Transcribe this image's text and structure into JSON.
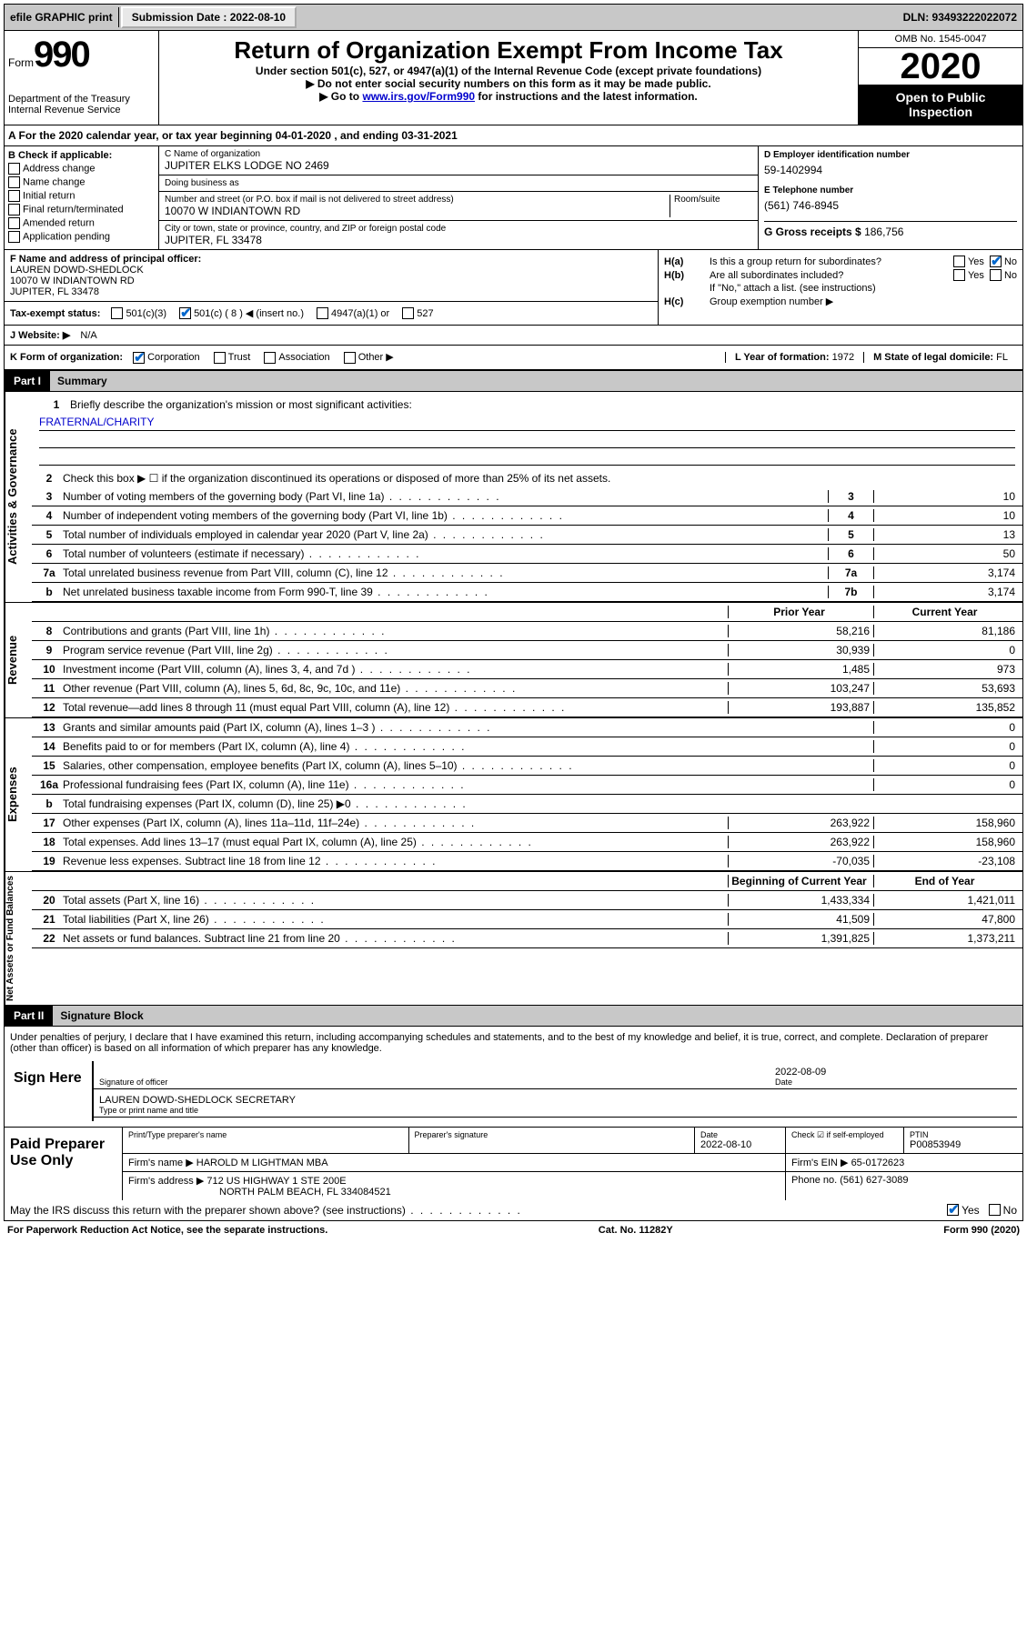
{
  "top_bar": {
    "efile": "efile GRAPHIC print",
    "sub_date_label": "Submission Date : 2022-08-10",
    "dln": "DLN: 93493222022072"
  },
  "header": {
    "form_word": "Form",
    "form_num": "990",
    "dept": "Department of the Treasury",
    "irs": "Internal Revenue Service",
    "title": "Return of Organization Exempt From Income Tax",
    "subtitle": "Under section 501(c), 527, or 4947(a)(1) of the Internal Revenue Code (except private foundations)",
    "note1": "▶ Do not enter social security numbers on this form as it may be made public.",
    "note2_pre": "▶ Go to ",
    "note2_link": "www.irs.gov/Form990",
    "note2_post": " for instructions and the latest information.",
    "omb": "OMB No. 1545-0047",
    "tax_year": "2020",
    "inspection": "Open to Public Inspection"
  },
  "line_a": "A For the 2020 calendar year, or tax year beginning 04-01-2020    , and ending 03-31-2021",
  "section_b": {
    "hdr": "B Check if applicable:",
    "opts": [
      "Address change",
      "Name change",
      "Initial return",
      "Final return/terminated",
      "Amended return",
      "Application pending"
    ]
  },
  "section_c": {
    "name_lbl": "C Name of organization",
    "name": "JUPITER ELKS LODGE NO 2469",
    "dba_lbl": "Doing business as",
    "dba": "",
    "addr_lbl": "Number and street (or P.O. box if mail is not delivered to street address)",
    "room_lbl": "Room/suite",
    "addr": "10070 W INDIANTOWN RD",
    "city_lbl": "City or town, state or province, country, and ZIP or foreign postal code",
    "city": "JUPITER, FL  33478"
  },
  "section_d": {
    "lbl": "D Employer identification number",
    "val": "59-1402994"
  },
  "section_e": {
    "lbl": "E Telephone number",
    "val": "(561) 746-8945"
  },
  "section_g": {
    "lbl": "G Gross receipts $ ",
    "val": "186,756"
  },
  "section_f": {
    "lbl": "F Name and address of principal officer:",
    "name": "LAUREN DOWD-SHEDLOCK",
    "addr": "10070 W INDIANTOWN RD",
    "city": "JUPITER, FL  33478"
  },
  "section_h": {
    "ha": "Is this a group return for subordinates?",
    "hb": "Are all subordinates included?",
    "hb_note": "If \"No,\" attach a list. (see instructions)",
    "hc": "Group exemption number ▶",
    "yes": "Yes",
    "no": "No"
  },
  "section_i": {
    "lbl": "Tax-exempt status:",
    "o1": "501(c)(3)",
    "o2": "501(c) ( 8 ) ◀ (insert no.)",
    "o3": "4947(a)(1) or",
    "o4": "527"
  },
  "section_j": {
    "lbl": "J   Website: ▶",
    "val": "N/A"
  },
  "section_k": {
    "lbl": "K Form of organization:",
    "o1": "Corporation",
    "o2": "Trust",
    "o3": "Association",
    "o4": "Other ▶",
    "l_lbl": "L Year of formation: ",
    "l_val": "1972",
    "m_lbl": "M State of legal domicile: ",
    "m_val": "FL"
  },
  "part1": {
    "label": "Part I",
    "title": "Summary"
  },
  "summary": {
    "q1": "Briefly describe the organization's mission or most significant activities:",
    "mission": "FRATERNAL/CHARITY",
    "q2": "Check this box ▶ ☐  if the organization discontinued its operations or disposed of more than 25% of its net assets.",
    "rows_governance": [
      {
        "n": "3",
        "t": "Number of voting members of the governing body (Part VI, line 1a)",
        "rn": "3",
        "v": "10"
      },
      {
        "n": "4",
        "t": "Number of independent voting members of the governing body (Part VI, line 1b)",
        "rn": "4",
        "v": "10"
      },
      {
        "n": "5",
        "t": "Total number of individuals employed in calendar year 2020 (Part V, line 2a)",
        "rn": "5",
        "v": "13"
      },
      {
        "n": "6",
        "t": "Total number of volunteers (estimate if necessary)",
        "rn": "6",
        "v": "50"
      },
      {
        "n": "7a",
        "t": "Total unrelated business revenue from Part VIII, column (C), line 12",
        "rn": "7a",
        "v": "3,174"
      },
      {
        "n": "b",
        "t": "Net unrelated business taxable income from Form 990-T, line 39",
        "rn": "7b",
        "v": "3,174"
      }
    ],
    "hdr_prior": "Prior Year",
    "hdr_curr": "Current Year",
    "rows_revenue": [
      {
        "n": "8",
        "t": "Contributions and grants (Part VIII, line 1h)",
        "p": "58,216",
        "c": "81,186"
      },
      {
        "n": "9",
        "t": "Program service revenue (Part VIII, line 2g)",
        "p": "30,939",
        "c": "0"
      },
      {
        "n": "10",
        "t": "Investment income (Part VIII, column (A), lines 3, 4, and 7d )",
        "p": "1,485",
        "c": "973"
      },
      {
        "n": "11",
        "t": "Other revenue (Part VIII, column (A), lines 5, 6d, 8c, 9c, 10c, and 11e)",
        "p": "103,247",
        "c": "53,693"
      },
      {
        "n": "12",
        "t": "Total revenue—add lines 8 through 11 (must equal Part VIII, column (A), line 12)",
        "p": "193,887",
        "c": "135,852"
      }
    ],
    "rows_expenses": [
      {
        "n": "13",
        "t": "Grants and similar amounts paid (Part IX, column (A), lines 1–3 )",
        "p": "",
        "c": "0"
      },
      {
        "n": "14",
        "t": "Benefits paid to or for members (Part IX, column (A), line 4)",
        "p": "",
        "c": "0"
      },
      {
        "n": "15",
        "t": "Salaries, other compensation, employee benefits (Part IX, column (A), lines 5–10)",
        "p": "",
        "c": "0"
      },
      {
        "n": "16a",
        "t": "Professional fundraising fees (Part IX, column (A), line 11e)",
        "p": "",
        "c": "0"
      },
      {
        "n": "b",
        "t": "Total fundraising expenses (Part IX, column (D), line 25) ▶0",
        "p": "grey",
        "c": "grey"
      },
      {
        "n": "17",
        "t": "Other expenses (Part IX, column (A), lines 11a–11d, 11f–24e)",
        "p": "263,922",
        "c": "158,960"
      },
      {
        "n": "18",
        "t": "Total expenses. Add lines 13–17 (must equal Part IX, column (A), line 25)",
        "p": "263,922",
        "c": "158,960"
      },
      {
        "n": "19",
        "t": "Revenue less expenses. Subtract line 18 from line 12",
        "p": "-70,035",
        "c": "-23,108"
      }
    ],
    "hdr_begin": "Beginning of Current Year",
    "hdr_end": "End of Year",
    "rows_netassets": [
      {
        "n": "20",
        "t": "Total assets (Part X, line 16)",
        "p": "1,433,334",
        "c": "1,421,011"
      },
      {
        "n": "21",
        "t": "Total liabilities (Part X, line 26)",
        "p": "41,509",
        "c": "47,800"
      },
      {
        "n": "22",
        "t": "Net assets or fund balances. Subtract line 21 from line 20",
        "p": "1,391,825",
        "c": "1,373,211"
      }
    ],
    "vlabels": [
      "Activities & Governance",
      "Revenue",
      "Expenses",
      "Net Assets or Fund Balances"
    ]
  },
  "part2": {
    "label": "Part II",
    "title": "Signature Block"
  },
  "sig": {
    "penalty": "Under penalties of perjury, I declare that I have examined this return, including accompanying schedules and statements, and to the best of my knowledge and belief, it is true, correct, and complete. Declaration of preparer (other than officer) is based on all information of which preparer has any knowledge.",
    "sign_here": "Sign Here",
    "sig_officer_lbl": "Signature of officer",
    "date_lbl": "Date",
    "date": "2022-08-09",
    "name": "LAUREN DOWD-SHEDLOCK SECRETARY",
    "name_lbl": "Type or print name and title"
  },
  "prep": {
    "title": "Paid Preparer Use Only",
    "print_lbl": "Print/Type preparer's name",
    "sig_lbl": "Preparer's signature",
    "date_lbl": "Date",
    "date": "2022-08-10",
    "check_lbl": "Check ☑ if self-employed",
    "ptin_lbl": "PTIN",
    "ptin": "P00853949",
    "firm_name_lbl": "Firm's name    ▶",
    "firm_name": "HAROLD M LIGHTMAN MBA",
    "firm_ein_lbl": "Firm's EIN ▶",
    "firm_ein": "65-0172623",
    "firm_addr_lbl": "Firm's address ▶",
    "firm_addr1": "712 US HIGHWAY 1 STE 200E",
    "firm_addr2": "NORTH PALM BEACH, FL  334084521",
    "phone_lbl": "Phone no. ",
    "phone": "(561) 627-3089",
    "discuss": "May the IRS discuss this return with the preparer shown above? (see instructions)"
  },
  "footer": {
    "pra": "For Paperwork Reduction Act Notice, see the separate instructions.",
    "cat": "Cat. No. 11282Y",
    "form": "Form 990 (2020)"
  }
}
